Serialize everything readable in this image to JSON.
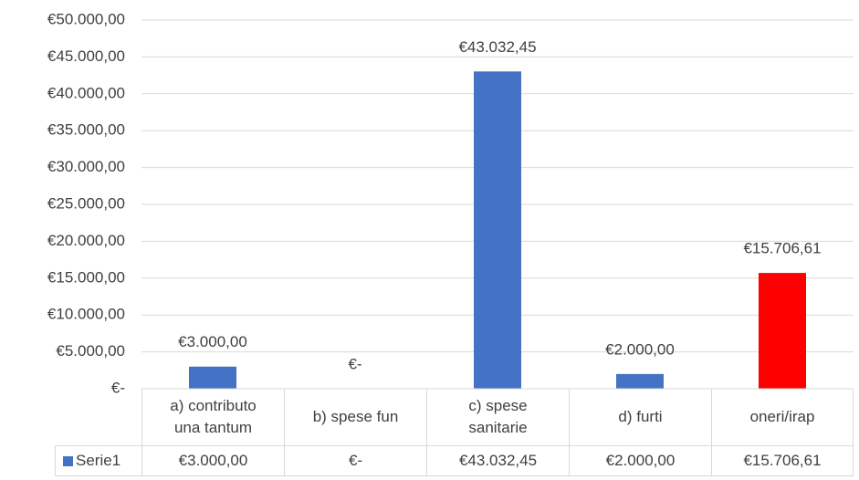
{
  "chart_data": {
    "type": "bar",
    "categories": [
      "a) contributo una tantum",
      "b) spese fun",
      "c) spese sanitarie",
      "d) furti",
      "oneri/irap"
    ],
    "series": [
      {
        "name": "Serie1",
        "color": "#4472c4",
        "colors": [
          "#4472c4",
          "#4472c4",
          "#4472c4",
          "#4472c4",
          "#ff0000"
        ],
        "values": [
          3000,
          0,
          43032.45,
          2000,
          15706.61
        ],
        "value_labels": [
          "€3.000,00",
          "€-",
          "€43.032,45",
          "€2.000,00",
          "€15.706,61"
        ]
      }
    ],
    "ylim": [
      0,
      50000
    ],
    "yticks": [
      {
        "value": 0,
        "label": "€-"
      },
      {
        "value": 5000,
        "label": "€5.000,00"
      },
      {
        "value": 10000,
        "label": "€10.000,00"
      },
      {
        "value": 15000,
        "label": "€15.000,00"
      },
      {
        "value": 20000,
        "label": "€20.000,00"
      },
      {
        "value": 25000,
        "label": "€25.000,00"
      },
      {
        "value": 30000,
        "label": "€30.000,00"
      },
      {
        "value": 35000,
        "label": "€35.000,00"
      },
      {
        "value": 40000,
        "label": "€40.000,00"
      },
      {
        "value": 45000,
        "label": "€45.000,00"
      },
      {
        "value": 50000,
        "label": "€50.000,00"
      }
    ],
    "grid": true,
    "data_table": true
  }
}
